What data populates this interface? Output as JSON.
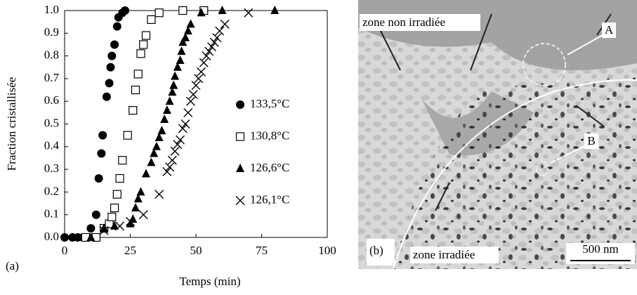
{
  "chart_data": {
    "type": "scatter",
    "panel_label": "(a)",
    "xlabel": "Temps (min)",
    "ylabel": "Fraction cristallisée",
    "xlim": [
      0,
      100
    ],
    "ylim": [
      0,
      1
    ],
    "xticks": [
      0,
      25,
      50,
      75,
      100
    ],
    "yticks": [
      {
        "value": 0,
        "label": "0.0"
      },
      0.1,
      0.2,
      0.3,
      0.4,
      0.5,
      0.6,
      0.7,
      0.8,
      0.9,
      {
        "value": 1,
        "label": "1.0"
      }
    ],
    "series": [
      {
        "name": "133,5°C",
        "marker": "circle",
        "color": "#000000",
        "x": [
          0,
          3,
          5,
          7,
          10,
          12,
          13,
          14,
          14.5,
          16,
          17,
          17.5,
          18,
          19,
          20,
          20.5,
          22,
          23
        ],
        "values": [
          0,
          0,
          0,
          0,
          0.04,
          0.1,
          0.26,
          0.37,
          0.45,
          0.62,
          0.68,
          0.75,
          0.8,
          0.85,
          0.93,
          0.97,
          0.99,
          1.0
        ]
      },
      {
        "name": "130,8°C",
        "marker": "square",
        "color": "#000000",
        "x": [
          8,
          12,
          15,
          17,
          18,
          19,
          20,
          21,
          22,
          24,
          26,
          27,
          28,
          29,
          30,
          31,
          33,
          36,
          45,
          53
        ],
        "values": [
          0,
          0,
          0.04,
          0.06,
          0.09,
          0.13,
          0.19,
          0.26,
          0.34,
          0.45,
          0.56,
          0.65,
          0.72,
          0.81,
          0.85,
          0.89,
          0.96,
          0.99,
          1.0,
          1.0
        ]
      },
      {
        "name": "126,6°C",
        "marker": "triangle",
        "color": "#000000",
        "x": [
          10,
          15,
          19,
          25,
          26,
          27,
          28,
          29,
          31,
          33,
          34,
          35,
          36,
          37,
          38,
          39,
          40,
          41,
          41.5,
          42,
          43,
          44,
          44.5,
          45,
          46,
          47,
          48,
          52,
          60,
          80
        ],
        "values": [
          0,
          0.04,
          0.05,
          0.06,
          0.08,
          0.13,
          0.17,
          0.2,
          0.28,
          0.33,
          0.37,
          0.4,
          0.44,
          0.47,
          0.52,
          0.56,
          0.6,
          0.64,
          0.67,
          0.71,
          0.75,
          0.78,
          0.82,
          0.86,
          0.88,
          0.91,
          0.94,
          0.99,
          1.0,
          1.0
        ]
      },
      {
        "name": "126,1°C",
        "marker": "x",
        "color": "#000000",
        "x": [
          15,
          21,
          25,
          30,
          36,
          39,
          40,
          41,
          42,
          43,
          44,
          45,
          46,
          47,
          48,
          49,
          50,
          51,
          52,
          53,
          54,
          55,
          56,
          57,
          58,
          59,
          61,
          70
        ],
        "values": [
          0.03,
          0.05,
          0.07,
          0.1,
          0.19,
          0.29,
          0.31,
          0.34,
          0.38,
          0.41,
          0.43,
          0.48,
          0.5,
          0.55,
          0.6,
          0.63,
          0.67,
          0.7,
          0.73,
          0.77,
          0.8,
          0.82,
          0.84,
          0.86,
          0.88,
          0.91,
          0.94,
          0.99
        ]
      }
    ]
  },
  "micrograph": {
    "panel_label": "(b)",
    "zone_top": "zone non irradiée",
    "zone_bottom": "zone irradiée",
    "marker_a": "A",
    "marker_b": "B",
    "scale_bar": "500 nm"
  }
}
